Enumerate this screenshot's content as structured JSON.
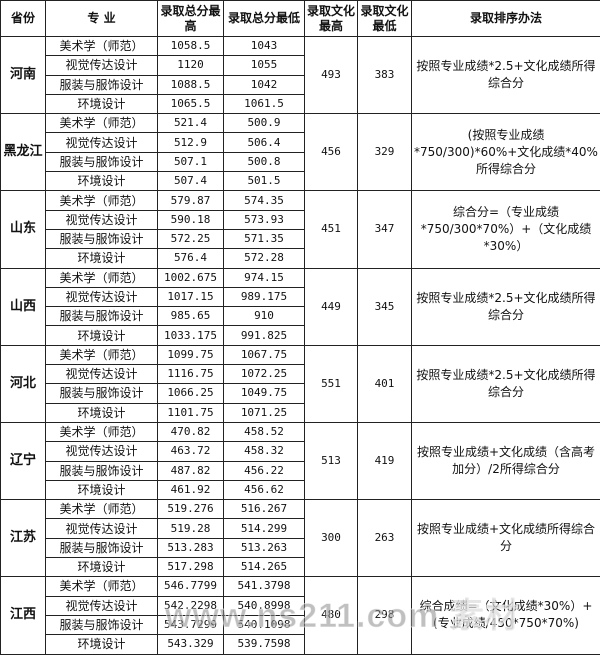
{
  "headers": [
    "省份",
    "专  业",
    "录取总分最高",
    "录取总分最低",
    "录取文化最高",
    "录取文化最低",
    "录取排序办法"
  ],
  "provinces": [
    {
      "name": "河南",
      "culture_max": "493",
      "culture_min": "383",
      "method": "按照专业成绩*2.5+文化成绩所得综合分",
      "rows": [
        [
          "美术学（师范）",
          "1058.5",
          "1043"
        ],
        [
          "视觉传达设计",
          "1120",
          "1055"
        ],
        [
          "服装与服饰设计",
          "1088.5",
          "1042"
        ],
        [
          "环境设计",
          "1065.5",
          "1061.5"
        ]
      ]
    },
    {
      "name": "黑龙江",
      "culture_max": "456",
      "culture_min": "329",
      "method": "(按照专业成绩*750/300)*60%+文化成绩*40%所得综合分",
      "rows": [
        [
          "美术学（师范）",
          "521.4",
          "500.9"
        ],
        [
          "视觉传达设计",
          "512.9",
          "506.4"
        ],
        [
          "服装与服饰设计",
          "507.1",
          "500.8"
        ],
        [
          "环境设计",
          "507.4",
          "501.5"
        ]
      ]
    },
    {
      "name": "山东",
      "culture_max": "451",
      "culture_min": "347",
      "method": "综合分=（专业成绩*750/300*70%）+（文化成绩*30%）",
      "rows": [
        [
          "美术学（师范）",
          "579.87",
          "574.35"
        ],
        [
          "视觉传达设计",
          "590.18",
          "573.93"
        ],
        [
          "服装与服饰设计",
          "572.25",
          "571.35"
        ],
        [
          "环境设计",
          "576.4",
          "572.28"
        ]
      ]
    },
    {
      "name": "山西",
      "culture_max": "449",
      "culture_min": "345",
      "method": "按照专业成绩*2.5+文化成绩所得综合分",
      "rows": [
        [
          "美术学（师范）",
          "1002.675",
          "974.15"
        ],
        [
          "视觉传达设计",
          "1017.15",
          "989.175"
        ],
        [
          "服装与服饰设计",
          "985.65",
          "910"
        ],
        [
          "环境设计",
          "1033.175",
          "991.825"
        ]
      ]
    },
    {
      "name": "河北",
      "culture_max": "551",
      "culture_min": "401",
      "method": "按照专业成绩*2.5+文化成绩所得综合分",
      "rows": [
        [
          "美术学（师范）",
          "1099.75",
          "1067.75"
        ],
        [
          "视觉传达设计",
          "1116.75",
          "1072.25"
        ],
        [
          "服装与服饰设计",
          "1066.25",
          "1049.75"
        ],
        [
          "环境设计",
          "1101.75",
          "1071.25"
        ]
      ]
    },
    {
      "name": "辽宁",
      "culture_max": "513",
      "culture_min": "419",
      "method": "按照专业成绩+文化成绩（含高考加分）/2所得综合分",
      "rows": [
        [
          "美术学（师范）",
          "470.82",
          "458.52"
        ],
        [
          "视觉传达设计",
          "463.72",
          "458.32"
        ],
        [
          "服装与服饰设计",
          "487.82",
          "456.22"
        ],
        [
          "环境设计",
          "461.92",
          "456.62"
        ]
      ]
    },
    {
      "name": "江苏",
      "culture_max": "300",
      "culture_min": "263",
      "method": "按照专业成绩+文化成绩所得综合分",
      "rows": [
        [
          "美术学（师范）",
          "519.276",
          "516.267"
        ],
        [
          "视觉传达设计",
          "519.28",
          "514.299"
        ],
        [
          "服装与服饰设计",
          "513.283",
          "513.263"
        ],
        [
          "环境设计",
          "517.298",
          "514.265"
        ]
      ]
    },
    {
      "name": "江西",
      "culture_max": "480",
      "culture_min": "298",
      "method": "综合成绩=（文化成绩*30%）+(专业成绩/450*750*70%)",
      "rows": [
        [
          "美术学（师范）",
          "546.7799",
          "541.3798"
        ],
        [
          "视觉传达设计",
          "542.2298",
          "540.8998"
        ],
        [
          "服装与服饰设计",
          "543.7299",
          "540.1098"
        ],
        [
          "环境设计",
          "543.329",
          "539.7598"
        ]
      ]
    }
  ],
  "watermark": "www.ns211.com 素材"
}
